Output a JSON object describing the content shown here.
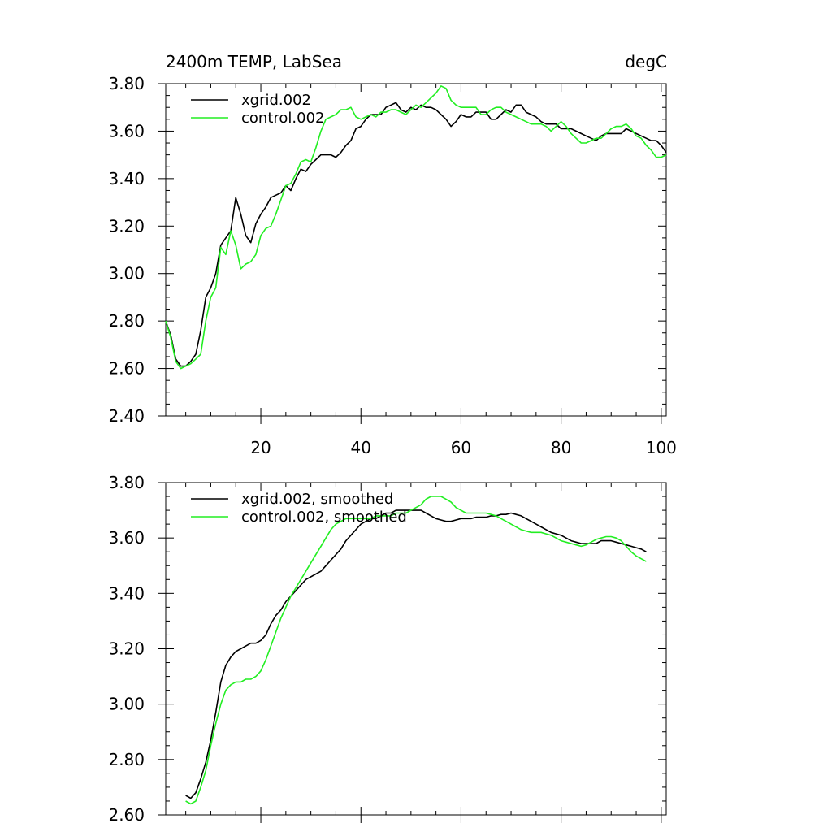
{
  "colors": {
    "series_a": "#000000",
    "series_b": "#22ee22"
  },
  "chart_data": [
    {
      "type": "line",
      "title_left": "2400m TEMP, LabSea",
      "title_right": "degC",
      "xlabel": "",
      "ylabel": "",
      "xlim": [
        1,
        101
      ],
      "ylim": [
        2.4,
        3.8
      ],
      "yticks": [
        "2.40",
        "2.60",
        "2.80",
        "3.00",
        "3.20",
        "3.40",
        "3.60",
        "3.80"
      ],
      "ytick_values": [
        2.4,
        2.6,
        2.8,
        3.0,
        3.2,
        3.4,
        3.6,
        3.8
      ],
      "xticks": [
        "20",
        "40",
        "60",
        "80",
        "100"
      ],
      "xtick_values": [
        20,
        40,
        60,
        80,
        100
      ],
      "legend_position": "top-left",
      "series": [
        {
          "name": "xgrid.002",
          "color_key": "series_a",
          "x": [
            1,
            2,
            3,
            4,
            5,
            6,
            7,
            8,
            9,
            10,
            11,
            12,
            13,
            14,
            15,
            16,
            17,
            18,
            19,
            20,
            21,
            22,
            23,
            24,
            25,
            26,
            27,
            28,
            29,
            30,
            31,
            32,
            33,
            34,
            35,
            36,
            37,
            38,
            39,
            40,
            41,
            42,
            43,
            44,
            45,
            46,
            47,
            48,
            49,
            50,
            51,
            52,
            53,
            54,
            55,
            56,
            57,
            58,
            59,
            60,
            61,
            62,
            63,
            64,
            65,
            66,
            67,
            68,
            69,
            70,
            71,
            72,
            73,
            74,
            75,
            76,
            77,
            78,
            79,
            80,
            81,
            82,
            83,
            84,
            85,
            86,
            87,
            88,
            89,
            90,
            91,
            92,
            93,
            94,
            95,
            96,
            97,
            98,
            99,
            100,
            101
          ],
          "values": [
            2.8,
            2.74,
            2.64,
            2.61,
            2.61,
            2.63,
            2.66,
            2.76,
            2.9,
            2.94,
            3.0,
            3.12,
            3.15,
            3.18,
            3.32,
            3.25,
            3.16,
            3.13,
            3.21,
            3.25,
            3.28,
            3.32,
            3.33,
            3.34,
            3.37,
            3.35,
            3.4,
            3.44,
            3.43,
            3.46,
            3.48,
            3.5,
            3.5,
            3.5,
            3.49,
            3.51,
            3.54,
            3.56,
            3.61,
            3.62,
            3.65,
            3.67,
            3.67,
            3.67,
            3.7,
            3.71,
            3.72,
            3.69,
            3.68,
            3.7,
            3.69,
            3.71,
            3.7,
            3.7,
            3.69,
            3.67,
            3.65,
            3.62,
            3.64,
            3.67,
            3.66,
            3.66,
            3.68,
            3.68,
            3.68,
            3.65,
            3.65,
            3.67,
            3.69,
            3.68,
            3.71,
            3.71,
            3.68,
            3.67,
            3.66,
            3.64,
            3.63,
            3.63,
            3.63,
            3.61,
            3.61,
            3.61,
            3.6,
            3.59,
            3.58,
            3.57,
            3.56,
            3.58,
            3.59,
            3.59,
            3.59,
            3.59,
            3.61,
            3.6,
            3.59,
            3.58,
            3.57,
            3.56,
            3.56,
            3.54,
            3.51
          ]
        },
        {
          "name": "control.002",
          "color_key": "series_b",
          "x": [
            1,
            2,
            3,
            4,
            5,
            6,
            7,
            8,
            9,
            10,
            11,
            12,
            13,
            14,
            15,
            16,
            17,
            18,
            19,
            20,
            21,
            22,
            23,
            24,
            25,
            26,
            27,
            28,
            29,
            30,
            31,
            32,
            33,
            34,
            35,
            36,
            37,
            38,
            39,
            40,
            41,
            42,
            43,
            44,
            45,
            46,
            47,
            48,
            49,
            50,
            51,
            52,
            53,
            54,
            55,
            56,
            57,
            58,
            59,
            60,
            61,
            62,
            63,
            64,
            65,
            66,
            67,
            68,
            69,
            70,
            71,
            72,
            73,
            74,
            75,
            76,
            77,
            78,
            79,
            80,
            81,
            82,
            83,
            84,
            85,
            86,
            87,
            88,
            89,
            90,
            91,
            92,
            93,
            94,
            95,
            96,
            97,
            98,
            99,
            100,
            101
          ],
          "values": [
            2.8,
            2.73,
            2.63,
            2.6,
            2.61,
            2.62,
            2.64,
            2.66,
            2.8,
            2.9,
            2.94,
            3.11,
            3.08,
            3.18,
            3.12,
            3.02,
            3.04,
            3.05,
            3.08,
            3.16,
            3.19,
            3.2,
            3.25,
            3.31,
            3.37,
            3.38,
            3.42,
            3.47,
            3.48,
            3.47,
            3.53,
            3.6,
            3.65,
            3.66,
            3.67,
            3.69,
            3.69,
            3.7,
            3.66,
            3.65,
            3.66,
            3.67,
            3.66,
            3.68,
            3.68,
            3.69,
            3.69,
            3.68,
            3.67,
            3.69,
            3.71,
            3.7,
            3.72,
            3.74,
            3.76,
            3.79,
            3.78,
            3.73,
            3.71,
            3.7,
            3.7,
            3.7,
            3.7,
            3.67,
            3.67,
            3.69,
            3.7,
            3.7,
            3.68,
            3.67,
            3.66,
            3.65,
            3.64,
            3.63,
            3.63,
            3.63,
            3.62,
            3.6,
            3.62,
            3.64,
            3.62,
            3.59,
            3.57,
            3.55,
            3.55,
            3.56,
            3.57,
            3.57,
            3.59,
            3.61,
            3.62,
            3.62,
            3.63,
            3.61,
            3.58,
            3.57,
            3.54,
            3.52,
            3.49,
            3.49,
            3.5
          ]
        }
      ]
    },
    {
      "type": "line",
      "xlabel": "",
      "ylabel": "",
      "xlim": [
        1,
        101
      ],
      "ylim": [
        2.6,
        3.8
      ],
      "yticks": [
        "2.60",
        "2.80",
        "3.00",
        "3.20",
        "3.40",
        "3.60",
        "3.80"
      ],
      "ytick_values": [
        2.6,
        2.8,
        3.0,
        3.2,
        3.4,
        3.6,
        3.8
      ],
      "xtick_values": [
        20,
        40,
        60,
        80,
        100
      ],
      "legend_position": "top-left",
      "series": [
        {
          "name": "xgrid.002, smoothed",
          "color_key": "series_a",
          "x": [
            5,
            6,
            7,
            8,
            9,
            10,
            11,
            12,
            13,
            14,
            15,
            16,
            17,
            18,
            19,
            20,
            21,
            22,
            23,
            24,
            25,
            26,
            27,
            28,
            29,
            30,
            31,
            32,
            33,
            34,
            35,
            36,
            37,
            38,
            39,
            40,
            41,
            42,
            43,
            44,
            45,
            46,
            47,
            48,
            49,
            50,
            51,
            52,
            53,
            54,
            55,
            56,
            57,
            58,
            59,
            60,
            61,
            62,
            63,
            64,
            65,
            66,
            67,
            68,
            69,
            70,
            71,
            72,
            73,
            74,
            75,
            76,
            77,
            78,
            79,
            80,
            81,
            82,
            83,
            84,
            85,
            86,
            87,
            88,
            89,
            90,
            91,
            92,
            93,
            94,
            95,
            96,
            97
          ],
          "values": [
            2.67,
            2.66,
            2.68,
            2.73,
            2.79,
            2.87,
            2.97,
            3.08,
            3.14,
            3.17,
            3.19,
            3.2,
            3.21,
            3.22,
            3.22,
            3.23,
            3.25,
            3.29,
            3.32,
            3.34,
            3.37,
            3.39,
            3.41,
            3.43,
            3.45,
            3.46,
            3.47,
            3.48,
            3.5,
            3.52,
            3.54,
            3.56,
            3.59,
            3.61,
            3.63,
            3.65,
            3.66,
            3.67,
            3.67,
            3.68,
            3.69,
            3.69,
            3.7,
            3.7,
            3.7,
            3.7,
            3.7,
            3.7,
            3.69,
            3.68,
            3.67,
            3.665,
            3.66,
            3.66,
            3.665,
            3.67,
            3.67,
            3.67,
            3.675,
            3.675,
            3.675,
            3.68,
            3.68,
            3.685,
            3.685,
            3.69,
            3.685,
            3.68,
            3.67,
            3.66,
            3.65,
            3.64,
            3.63,
            3.62,
            3.615,
            3.61,
            3.6,
            3.59,
            3.585,
            3.58,
            3.58,
            3.58,
            3.58,
            3.59,
            3.59,
            3.59,
            3.585,
            3.58,
            3.575,
            3.57,
            3.565,
            3.56,
            3.55
          ]
        },
        {
          "name": "control.002, smoothed",
          "color_key": "series_b",
          "x": [
            5,
            6,
            7,
            8,
            9,
            10,
            11,
            12,
            13,
            14,
            15,
            16,
            17,
            18,
            19,
            20,
            21,
            22,
            23,
            24,
            25,
            26,
            27,
            28,
            29,
            30,
            31,
            32,
            33,
            34,
            35,
            36,
            37,
            38,
            39,
            40,
            41,
            42,
            43,
            44,
            45,
            46,
            47,
            48,
            49,
            50,
            51,
            52,
            53,
            54,
            55,
            56,
            57,
            58,
            59,
            60,
            61,
            62,
            63,
            64,
            65,
            66,
            67,
            68,
            69,
            70,
            71,
            72,
            73,
            74,
            75,
            76,
            77,
            78,
            79,
            80,
            81,
            82,
            83,
            84,
            85,
            86,
            87,
            88,
            89,
            90,
            91,
            92,
            93,
            94,
            95,
            96,
            97
          ],
          "values": [
            2.65,
            2.64,
            2.65,
            2.7,
            2.76,
            2.85,
            2.93,
            3.0,
            3.05,
            3.07,
            3.08,
            3.08,
            3.09,
            3.09,
            3.1,
            3.12,
            3.16,
            3.21,
            3.26,
            3.31,
            3.35,
            3.39,
            3.42,
            3.45,
            3.48,
            3.51,
            3.54,
            3.57,
            3.6,
            3.63,
            3.65,
            3.66,
            3.67,
            3.67,
            3.67,
            3.67,
            3.67,
            3.67,
            3.68,
            3.68,
            3.68,
            3.68,
            3.69,
            3.69,
            3.69,
            3.7,
            3.71,
            3.72,
            3.74,
            3.75,
            3.75,
            3.75,
            3.74,
            3.73,
            3.71,
            3.7,
            3.69,
            3.69,
            3.69,
            3.69,
            3.69,
            3.685,
            3.68,
            3.67,
            3.66,
            3.65,
            3.64,
            3.63,
            3.625,
            3.62,
            3.62,
            3.62,
            3.615,
            3.61,
            3.6,
            3.59,
            3.585,
            3.58,
            3.575,
            3.57,
            3.575,
            3.585,
            3.595,
            3.6,
            3.605,
            3.605,
            3.6,
            3.59,
            3.57,
            3.55,
            3.535,
            3.525,
            3.515
          ]
        }
      ]
    }
  ]
}
